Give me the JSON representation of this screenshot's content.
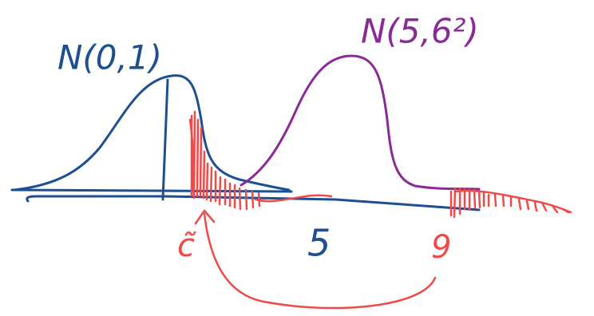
{
  "labels": {
    "standard_normal": "N(0,1)",
    "shifted_normal": "N(5,6²)",
    "c_tilde": "c̃",
    "five": "5",
    "nine": "9"
  }
}
